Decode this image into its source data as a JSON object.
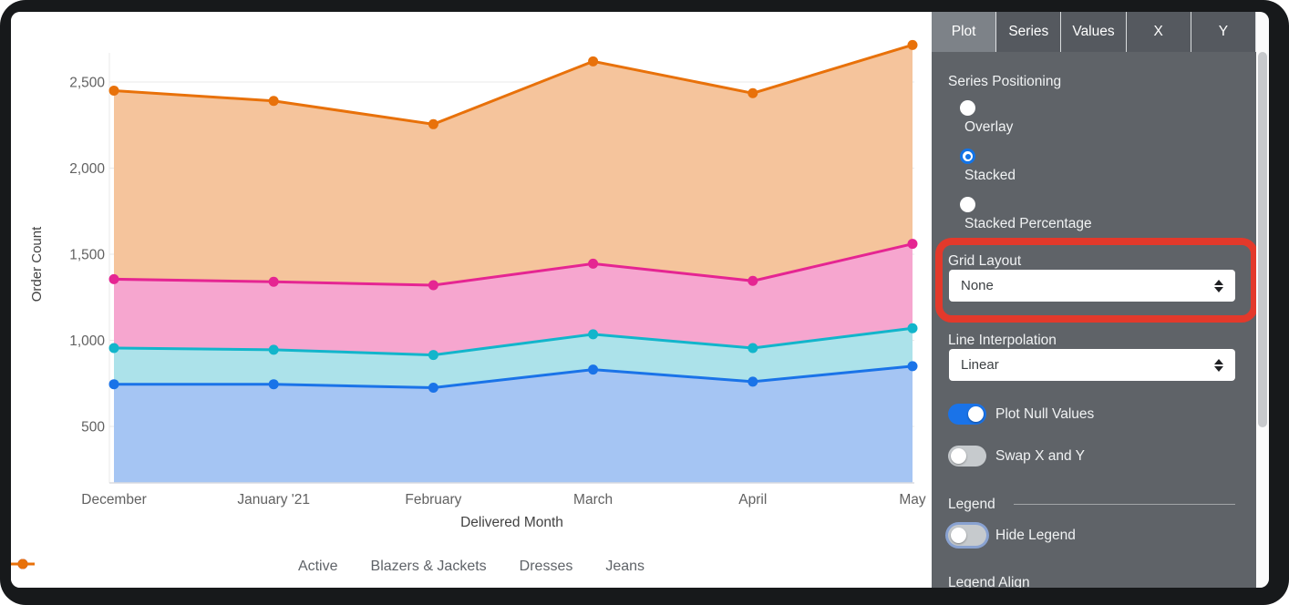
{
  "chart_data": {
    "type": "area",
    "stacked": true,
    "title": "",
    "xlabel": "Delivered Month",
    "ylabel": "Order Count",
    "categories": [
      "December",
      "January '21",
      "February",
      "March",
      "April",
      "May"
    ],
    "series": [
      {
        "name": "Active",
        "color": "#1a73e8",
        "fill": "#a5c5f3",
        "values": [
          745,
          745,
          725,
          830,
          760,
          850
        ]
      },
      {
        "name": "Blazers & Jackets",
        "color": "#12b5cb",
        "fill": "#ace2ea",
        "values": [
          210,
          200,
          190,
          205,
          195,
          220
        ]
      },
      {
        "name": "Dresses",
        "color": "#e52592",
        "fill": "#f6a6cf",
        "values": [
          400,
          395,
          405,
          410,
          390,
          490
        ]
      },
      {
        "name": "Jeans",
        "color": "#e8710a",
        "fill": "#f5c49c",
        "values": [
          1095,
          1050,
          935,
          1175,
          1090,
          1155
        ]
      }
    ],
    "stacked_totals": [
      2450,
      2390,
      2255,
      2620,
      2435,
      2715
    ],
    "y_ticks": [
      {
        "v": 500,
        "label": "500"
      },
      {
        "v": 1000,
        "label": "1,000"
      },
      {
        "v": 1500,
        "label": "1,500"
      },
      {
        "v": 2000,
        "label": "2,000"
      },
      {
        "v": 2500,
        "label": "2,500"
      }
    ],
    "ylim": [
      170,
      2900
    ],
    "grid": true,
    "legend_position": "bottom"
  },
  "panel": {
    "tabs": [
      {
        "label": "Plot",
        "selected": true
      },
      {
        "label": "Series",
        "selected": false
      },
      {
        "label": "Values",
        "selected": false
      },
      {
        "label": "X",
        "selected": false
      },
      {
        "label": "Y",
        "selected": false
      }
    ],
    "series_positioning": {
      "label": "Series Positioning",
      "options": [
        {
          "label": "Overlay",
          "selected": false
        },
        {
          "label": "Stacked",
          "selected": true
        },
        {
          "label": "Stacked Percentage",
          "selected": false
        }
      ]
    },
    "grid_layout": {
      "label": "Grid Layout",
      "value": "None"
    },
    "line_interpolation": {
      "label": "Line Interpolation",
      "value": "Linear"
    },
    "toggles": [
      {
        "label": "Plot Null Values",
        "on": true
      },
      {
        "label": "Swap X and Y",
        "on": false
      }
    ],
    "legend_section_label": "Legend",
    "hide_legend": {
      "label": "Hide Legend",
      "on": false
    },
    "legend_align_label": "Legend Align"
  },
  "annotation": {
    "shape": "rounded-rectangle",
    "color": "#e3392b"
  },
  "colors": {
    "panel_bg": "#5f6368",
    "tabbar_bg": "#55595f",
    "tab_selected_bg": "#7d8288",
    "toggle_on": "#1a73e8",
    "radio_selected": "#1273e6"
  }
}
